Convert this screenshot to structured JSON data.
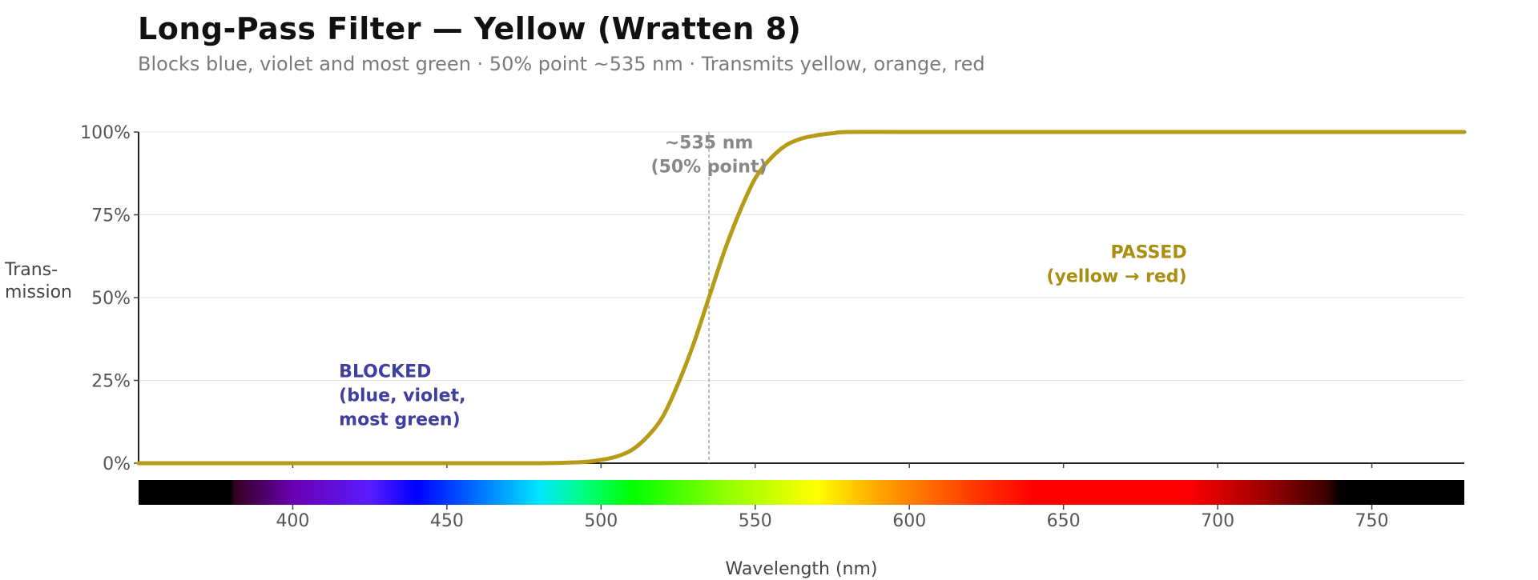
{
  "chart_data": {
    "type": "line",
    "title": "Long-Pass Filter  —  Yellow (Wratten 8)",
    "subtitle": "Blocks blue, violet and most green  ·  50% point ~535 nm  ·  Transmits yellow, orange, red",
    "xlabel": "Wavelength (nm)",
    "ylabel": "Trans-\nmission",
    "xlim": [
      350,
      780
    ],
    "ylim": [
      0,
      100
    ],
    "x_ticks": [
      400,
      450,
      500,
      550,
      600,
      650,
      700,
      750
    ],
    "x_tick_labels": [
      "400",
      "450",
      "500",
      "550",
      "600",
      "650",
      "700",
      "750"
    ],
    "y_ticks": [
      0,
      25,
      50,
      75,
      100
    ],
    "y_tick_labels": [
      "0%",
      "25%",
      "50%",
      "75%",
      "100%"
    ],
    "grid": "horizontal",
    "series": [
      {
        "color": "#b59b17",
        "x": [
          350,
          400,
          450,
          480,
          490,
          495,
          500,
          505,
          510,
          515,
          520,
          525,
          530,
          535,
          540,
          545,
          550,
          555,
          560,
          565,
          570,
          575,
          580,
          600,
          650,
          700,
          750,
          780
        ],
        "y": [
          0,
          0,
          0,
          0,
          0.2,
          0.4,
          1,
          2,
          4,
          8,
          14,
          24,
          36,
          50,
          64,
          76,
          86,
          92,
          96,
          98,
          99,
          99.6,
          100,
          100,
          100,
          100,
          100,
          100
        ]
      }
    ],
    "reference_line": {
      "x": 535,
      "style": "dashed",
      "color": "#999999"
    },
    "annotations": [
      {
        "text": "~535 nm\n(50% point)",
        "x": 535,
        "y": 95,
        "color": "#888888"
      },
      {
        "text": "BLOCKED\n(blue, violet,\nmost green)",
        "x": 415,
        "y": 26,
        "color": "#3f3f9f"
      },
      {
        "text": "PASSED\n(yellow → red)",
        "x": 690,
        "y": 62,
        "color": "#a98e12"
      }
    ],
    "spectrum_bar": {
      "range": [
        380,
        740
      ]
    }
  }
}
